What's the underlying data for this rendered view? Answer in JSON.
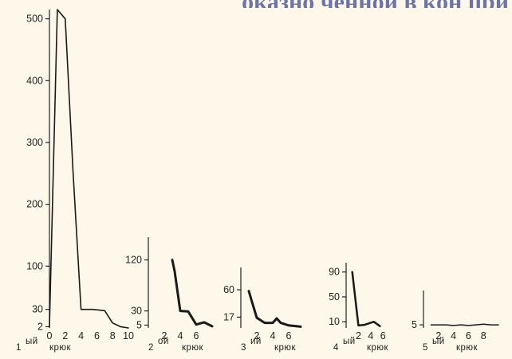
{
  "header": {
    "text": "оказно ченной в кон при"
  },
  "chart_data": [
    {
      "type": "line",
      "caption": {
        "number": "1",
        "suffix": "ый",
        "word": "крюк"
      },
      "ylim": [
        0,
        515
      ],
      "xlim": [
        0,
        10.4
      ],
      "yticks": [
        "2",
        "30",
        "100",
        "200",
        "300",
        "400",
        "500"
      ],
      "xticks": [
        "0",
        "2",
        "4",
        "6",
        "8",
        "10"
      ],
      "series": [
        {
          "x": [
            0,
            1,
            2,
            3,
            4,
            5.5,
            7,
            8,
            9,
            10
          ],
          "y": [
            2,
            515,
            500,
            250,
            30,
            30,
            28,
            8,
            2,
            0
          ]
        }
      ]
    },
    {
      "type": "line",
      "caption": {
        "number": "2",
        "suffix": "ой",
        "word": "крюк"
      },
      "ylim": [
        0,
        160
      ],
      "xlim": [
        0,
        8.2
      ],
      "yticks": [
        "5",
        "30",
        "120"
      ],
      "xticks": [
        "2",
        "4",
        "6"
      ],
      "series": [
        {
          "x": [
            3,
            3.3,
            4,
            5,
            6,
            7,
            8
          ],
          "y": [
            120,
            100,
            30,
            29,
            6,
            10,
            3
          ]
        }
      ]
    },
    {
      "type": "line",
      "caption": {
        "number": "3",
        "suffix": "ий",
        "word": "крюк"
      },
      "ylim": [
        0,
        95
      ],
      "xlim": [
        0,
        8
      ],
      "yticks": [
        "17",
        "60"
      ],
      "xticks": [
        "2",
        "4",
        "6"
      ],
      "series": [
        {
          "x": [
            1,
            1.3,
            2,
            3,
            4,
            4.5,
            5,
            6,
            7.5
          ],
          "y": [
            58,
            45,
            16,
            8,
            8,
            15,
            8,
            4,
            2
          ]
        }
      ]
    },
    {
      "type": "line",
      "caption": {
        "number": "4",
        "suffix": "ый",
        "word": "крюк"
      },
      "ylim": [
        0,
        105
      ],
      "xlim": [
        0,
        7
      ],
      "yticks": [
        "10",
        "50",
        "90"
      ],
      "xticks": [
        "2",
        "4",
        "6"
      ],
      "series": [
        {
          "x": [
            1,
            2,
            3,
            4.5,
            5.5
          ],
          "y": [
            90,
            4,
            5,
            10,
            3
          ]
        }
      ]
    },
    {
      "type": "line",
      "caption": {
        "number": "5",
        "suffix": "ый",
        "word": "крюк"
      },
      "ylim": [
        0,
        60
      ],
      "xlim": [
        0,
        10
      ],
      "yticks": [
        "5"
      ],
      "xticks": [
        "2",
        "4",
        "6",
        "8"
      ],
      "series": [
        {
          "x": [
            1,
            3,
            4,
            5,
            6,
            7,
            8,
            9,
            10
          ],
          "y": [
            5,
            5,
            4,
            5,
            4,
            5,
            6,
            5,
            5
          ]
        }
      ]
    }
  ]
}
